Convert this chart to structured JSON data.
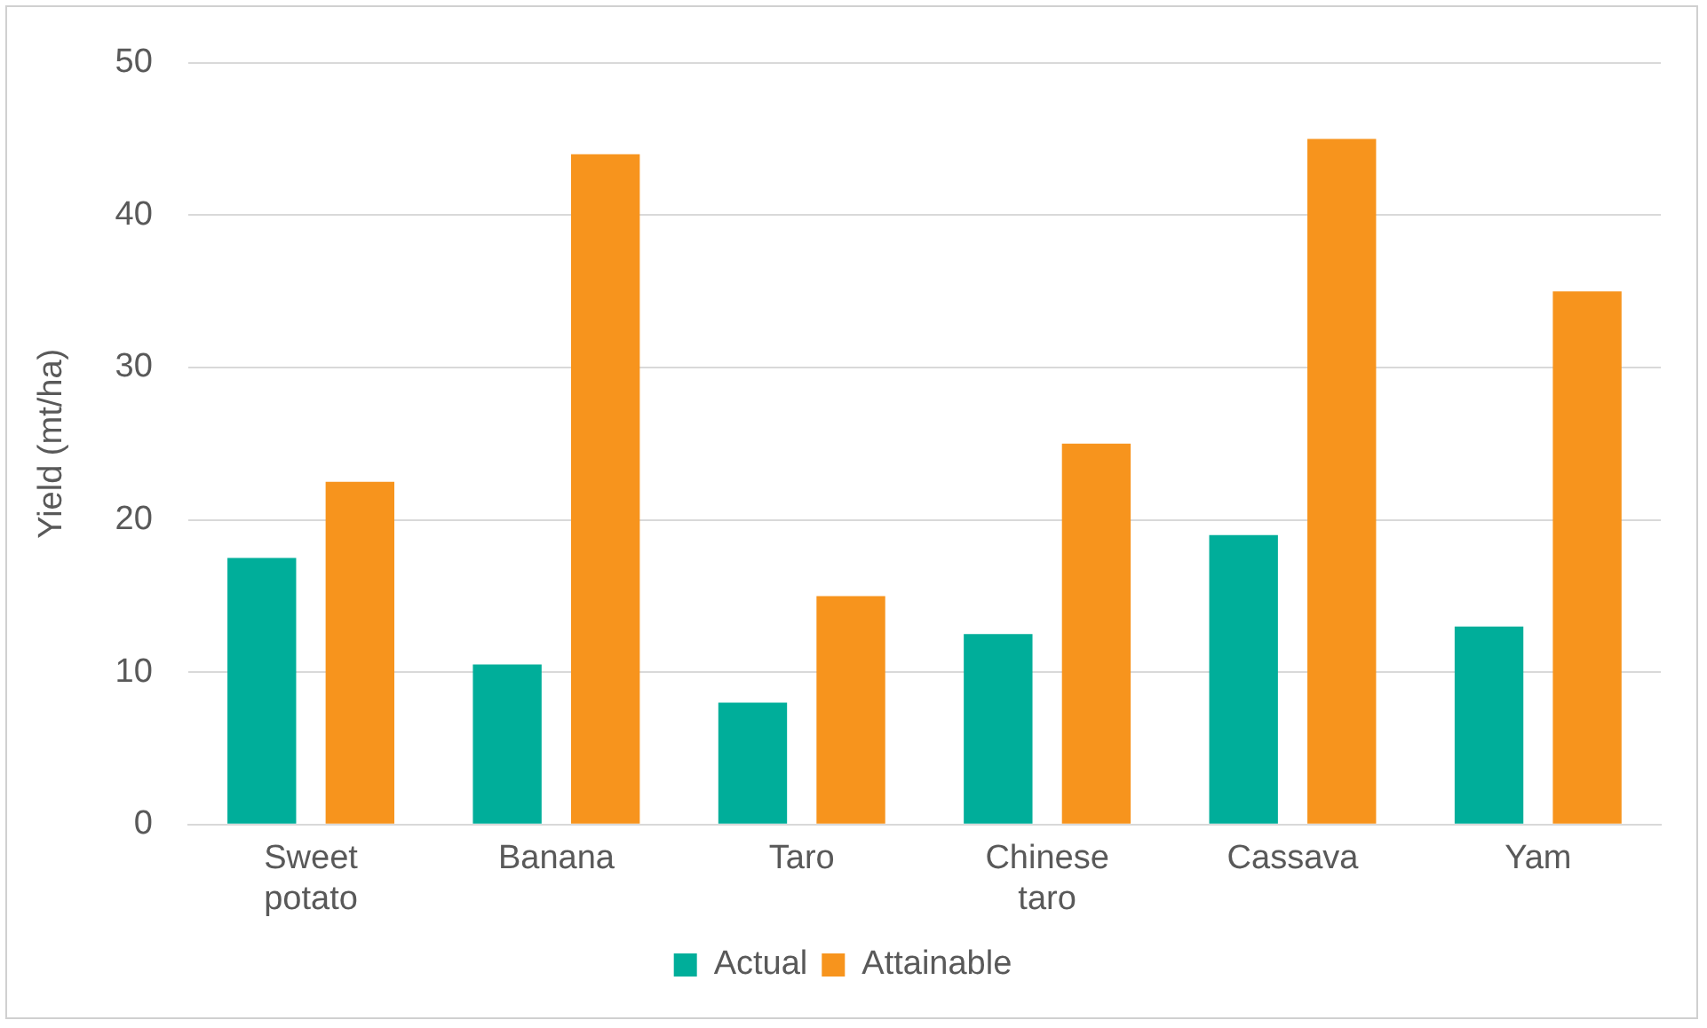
{
  "chart_data": {
    "type": "bar",
    "ylabel": "Yield (mt/ha)",
    "categories": [
      "Sweet potato",
      "Banana",
      "Taro",
      "Chinese taro",
      "Cassava",
      "Yam"
    ],
    "series": [
      {
        "name": "Actual",
        "color": "#00ae9a",
        "values": [
          17.5,
          10.5,
          8,
          12.5,
          19,
          13
        ]
      },
      {
        "name": "Attainable",
        "color": "#f7941d",
        "values": [
          22.5,
          44,
          15,
          25,
          45,
          35
        ]
      }
    ],
    "ylim": [
      0,
      50
    ],
    "yticks": [
      0,
      10,
      20,
      30,
      40,
      50
    ],
    "grid": "y",
    "legend": "bottom"
  }
}
